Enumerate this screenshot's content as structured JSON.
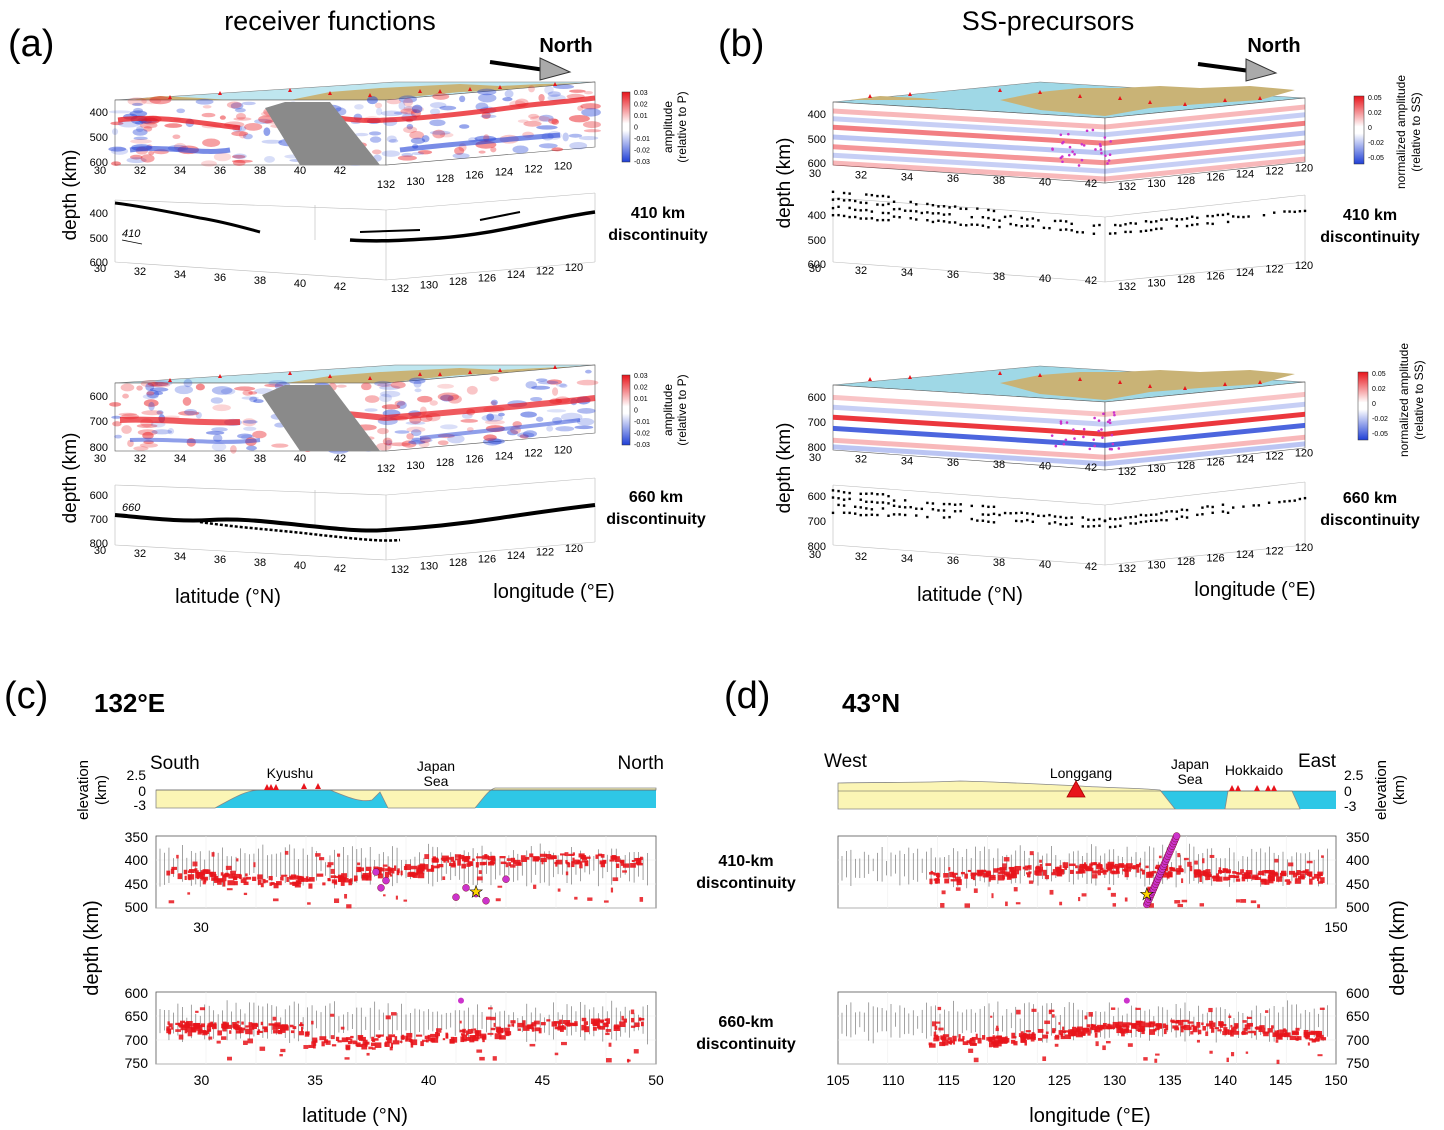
{
  "panel_a": {
    "letter": "(a)",
    "title": "receiver functions",
    "north": "North",
    "cb_ticks": [
      "0.03",
      "0.02",
      "0.01",
      "0",
      "-0.01",
      "-0.02",
      "-0.03"
    ],
    "cb_label": [
      "amplitude",
      "(relative to P)"
    ],
    "ylabel": "depth (km)",
    "blocks": [
      {
        "depth_ticks": [
          "400",
          "500",
          "600"
        ],
        "lat_ticks": [
          "30",
          "32",
          "34",
          "36",
          "38",
          "40",
          "42"
        ],
        "lon_ticks": [
          "132",
          "130",
          "128",
          "126",
          "124",
          "122",
          "120"
        ]
      },
      {
        "depth_ticks": [
          "400",
          "500",
          "600"
        ],
        "lat_ticks": [
          "30",
          "32",
          "34",
          "36",
          "38",
          "40",
          "42"
        ],
        "lon_ticks": [
          "132",
          "130",
          "128",
          "126",
          "124",
          "122",
          "120"
        ],
        "contour": "410",
        "disc_label": [
          "410 km",
          "discontinuity"
        ]
      },
      {
        "depth_ticks": [
          "600",
          "700",
          "800"
        ],
        "lat_ticks": [
          "30",
          "32",
          "34",
          "36",
          "38",
          "40",
          "42"
        ],
        "lon_ticks": [
          "132",
          "130",
          "128",
          "126",
          "124",
          "122",
          "120"
        ]
      },
      {
        "depth_ticks": [
          "600",
          "700",
          "800"
        ],
        "lat_ticks": [
          "30",
          "32",
          "34",
          "36",
          "38",
          "40",
          "42"
        ],
        "lon_ticks": [
          "132",
          "130",
          "128",
          "126",
          "124",
          "122",
          "120"
        ],
        "contour": "660",
        "disc_label": [
          "660 km",
          "discontinuity"
        ]
      }
    ],
    "xlabel_lat": "latitude (°N)",
    "xlabel_lon": "longitude (°E)"
  },
  "panel_b": {
    "letter": "(b)",
    "title": "SS-precursors",
    "north": "North",
    "cb_ticks": [
      "0.05",
      "0.02",
      "0",
      "-0.02",
      "-0.05"
    ],
    "cb_label": [
      "normalized amplitude",
      "(relative to SS)"
    ],
    "ylabel": "depth (km)",
    "blocks": [
      {
        "depth_ticks": [
          "400",
          "500",
          "600"
        ],
        "lat_ticks": [
          "30",
          "32",
          "34",
          "36",
          "38",
          "40",
          "42"
        ],
        "lon_ticks": [
          "132",
          "130",
          "128",
          "126",
          "124",
          "122",
          "120"
        ]
      },
      {
        "depth_ticks": [
          "400",
          "500",
          "600"
        ],
        "lat_ticks": [
          "30",
          "32",
          "34",
          "36",
          "38",
          "40",
          "42"
        ],
        "lon_ticks": [
          "132",
          "130",
          "128",
          "126",
          "124",
          "122",
          "120"
        ],
        "disc_label": [
          "410 km",
          "discontinuity"
        ]
      },
      {
        "depth_ticks": [
          "600",
          "700",
          "800"
        ],
        "lat_ticks": [
          "30",
          "32",
          "34",
          "36",
          "38",
          "40",
          "42"
        ],
        "lon_ticks": [
          "132",
          "130",
          "128",
          "126",
          "124",
          "122",
          "120"
        ]
      },
      {
        "depth_ticks": [
          "600",
          "700",
          "800"
        ],
        "lat_ticks": [
          "30",
          "32",
          "34",
          "36",
          "38",
          "40",
          "42"
        ],
        "lon_ticks": [
          "132",
          "130",
          "128",
          "126",
          "124",
          "122",
          "120"
        ],
        "disc_label": [
          "660 km",
          "discontinuity"
        ]
      }
    ],
    "xlabel_lat": "latitude (°N)",
    "xlabel_lon": "longitude (°E)"
  },
  "panel_c": {
    "letter": "(c)",
    "title": "132°E",
    "left_dir": "South",
    "right_dir": "North",
    "places": [
      "Kyushu",
      "Japan",
      "Sea"
    ],
    "elev_label": [
      "elevation",
      "(km)"
    ],
    "elev_ticks": [
      "2.5",
      "0",
      "-3"
    ],
    "upper_ticks": [
      "350",
      "400",
      "450",
      "500"
    ],
    "lower_ticks": [
      "600",
      "650",
      "700",
      "750"
    ],
    "mid_tick": "30",
    "x_ticks": [
      "30",
      "35",
      "40",
      "45",
      "50"
    ],
    "x_range": [
      28,
      50
    ],
    "xlabel": "latitude (°N)",
    "ylabel": "depth (km)"
  },
  "panel_d": {
    "letter": "(d)",
    "title": "43°N",
    "left_dir": "West",
    "right_dir": "East",
    "places": [
      "Longgang",
      "Japan",
      "Sea",
      "Hokkaido"
    ],
    "elev_label": [
      "elevation",
      "(km)"
    ],
    "elev_ticks": [
      "2.5",
      "0",
      "-3"
    ],
    "upper_ticks": [
      "350",
      "400",
      "450",
      "500"
    ],
    "lower_ticks": [
      "600",
      "650",
      "700",
      "750"
    ],
    "mid_tick": "150",
    "x_ticks": [
      "105",
      "110",
      "115",
      "120",
      "125",
      "130",
      "135",
      "140",
      "145",
      "150"
    ],
    "x_range": [
      105,
      150
    ],
    "xlabel": "longitude (°E)",
    "ylabel": "depth (km)"
  },
  "mid_labels": {
    "d410": [
      "410-km",
      "discontinuity"
    ],
    "d660": [
      "660-km",
      "discontinuity"
    ]
  },
  "colors": {
    "red": "#e8141b",
    "blue": "#1f3fd6",
    "sea": "#2ec7e6",
    "land": "#fbf5b5",
    "map_sea": "#bfe6ef",
    "map_land": "#c9b376",
    "magenta": "#cc33cc",
    "grey": "#8a8a8a"
  }
}
